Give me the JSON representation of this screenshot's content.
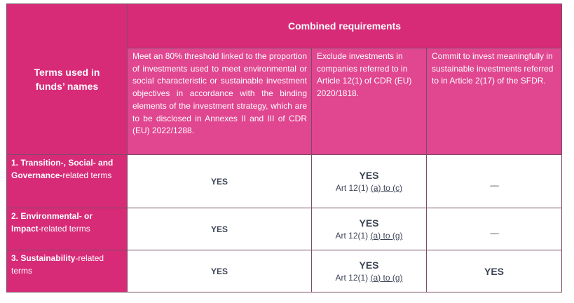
{
  "header": {
    "terms_label": "Terms used  in funds’ names",
    "combined_label": "Combined requirements",
    "req1": "Meet an 80% threshold linked to the proportion of investments used to meet environmental or social characteristic or sustainable investment objectives in accordance with the binding elements of the investment strategy, which are to be disclosed in Annexes II and III of CDR (EU) 2022/1288.",
    "req2": "Exclude investments in companies referred to in Article 12(1) of CDR (EU) 2020/1818.",
    "req3": "Commit to invest meaningfully in sustainable investments referred to in Article 2(17) of the SFDR."
  },
  "rows": [
    {
      "label_num": "1. ",
      "label_bold": "Transition-, Social- and Governance-",
      "label_rest": "related terms",
      "col1": "YES",
      "col2_yes": "YES",
      "col2_art_prefix": "Art 12(1) ",
      "col2_art_link": "(a) to (c)",
      "col3": "__"
    },
    {
      "label_num": "2. ",
      "label_bold": "Environmental- or Impact",
      "label_rest": "-related terms",
      "col1": "YES",
      "col2_yes": "YES",
      "col2_art_prefix": "Art 12(1) ",
      "col2_art_link": "(a) to (g)",
      "col3": "__"
    },
    {
      "label_num": "3. ",
      "label_bold": "Sustainability",
      "label_rest": "-related terms",
      "col1": "YES",
      "col2_yes": "YES",
      "col2_art_prefix": "Art 12(1) ",
      "col2_art_link": "(a) to (g)",
      "col3": "YES"
    }
  ]
}
